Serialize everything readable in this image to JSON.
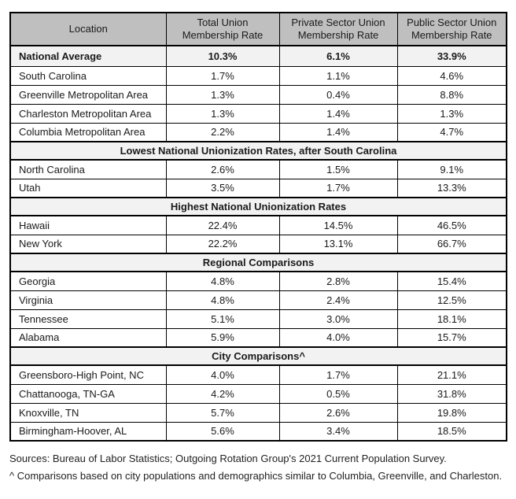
{
  "colors": {
    "header_bg": "#bfbfbf",
    "highlight_bg": "#f2f2f2",
    "border": "#000000",
    "text": "#1a1a1a"
  },
  "table": {
    "columns": [
      "Location",
      "Total Union Membership Rate",
      "Private Sector Union Membership Rate",
      "Public Sector Union Membership Rate"
    ],
    "rows": [
      {
        "type": "data",
        "bold": true,
        "location": "National Average",
        "values": [
          "10.3%",
          "6.1%",
          "33.9%"
        ]
      },
      {
        "type": "data",
        "bold": false,
        "location": "South Carolina",
        "values": [
          "1.7%",
          "1.1%",
          "4.6%"
        ]
      },
      {
        "type": "data",
        "bold": false,
        "location": "Greenville Metropolitan Area",
        "values": [
          "1.3%",
          "0.4%",
          "8.8%"
        ]
      },
      {
        "type": "data",
        "bold": false,
        "location": "Charleston Metropolitan Area",
        "values": [
          "1.3%",
          "1.4%",
          "1.3%"
        ]
      },
      {
        "type": "data",
        "bold": false,
        "location": "Columbia Metropolitan Area",
        "values": [
          "2.2%",
          "1.4%",
          "4.7%"
        ]
      },
      {
        "type": "section",
        "label": "Lowest National Unionization Rates, after South Carolina"
      },
      {
        "type": "data",
        "bold": false,
        "location": "North Carolina",
        "values": [
          "2.6%",
          "1.5%",
          "9.1%"
        ]
      },
      {
        "type": "data",
        "bold": false,
        "location": "Utah",
        "values": [
          "3.5%",
          "1.7%",
          "13.3%"
        ]
      },
      {
        "type": "section",
        "label": "Highest National Unionization Rates"
      },
      {
        "type": "data",
        "bold": false,
        "location": "Hawaii",
        "values": [
          "22.4%",
          "14.5%",
          "46.5%"
        ]
      },
      {
        "type": "data",
        "bold": false,
        "location": "New York",
        "values": [
          "22.2%",
          "13.1%",
          "66.7%"
        ]
      },
      {
        "type": "section",
        "label": "Regional Comparisons"
      },
      {
        "type": "data",
        "bold": false,
        "location": "Georgia",
        "values": [
          "4.8%",
          "2.8%",
          "15.4%"
        ]
      },
      {
        "type": "data",
        "bold": false,
        "location": "Virginia",
        "values": [
          "4.8%",
          "2.4%",
          "12.5%"
        ]
      },
      {
        "type": "data",
        "bold": false,
        "location": "Tennessee",
        "values": [
          "5.1%",
          "3.0%",
          "18.1%"
        ]
      },
      {
        "type": "data",
        "bold": false,
        "location": "Alabama",
        "values": [
          "5.9%",
          "4.0%",
          "15.7%"
        ]
      },
      {
        "type": "section",
        "label": "City Comparisons^"
      },
      {
        "type": "data",
        "bold": false,
        "location": "Greensboro-High Point, NC",
        "values": [
          "4.0%",
          "1.7%",
          "21.1%"
        ]
      },
      {
        "type": "data",
        "bold": false,
        "location": "Chattanooga, TN-GA",
        "values": [
          "4.2%",
          "0.5%",
          "31.8%"
        ]
      },
      {
        "type": "data",
        "bold": false,
        "location": "Knoxville, TN",
        "values": [
          "5.7%",
          "2.6%",
          "19.8%"
        ]
      },
      {
        "type": "data",
        "bold": false,
        "location": "Birmingham-Hoover, AL",
        "values": [
          "5.6%",
          "3.4%",
          "18.5%"
        ]
      }
    ]
  },
  "footer": {
    "sources_line": "Sources: Bureau of Labor Statistics; Outgoing Rotation Group's 2021 Current Population Survey.",
    "note_line": "^ Comparisons based on city populations and demographics similar to Columbia, Greenville, and Charleston."
  }
}
